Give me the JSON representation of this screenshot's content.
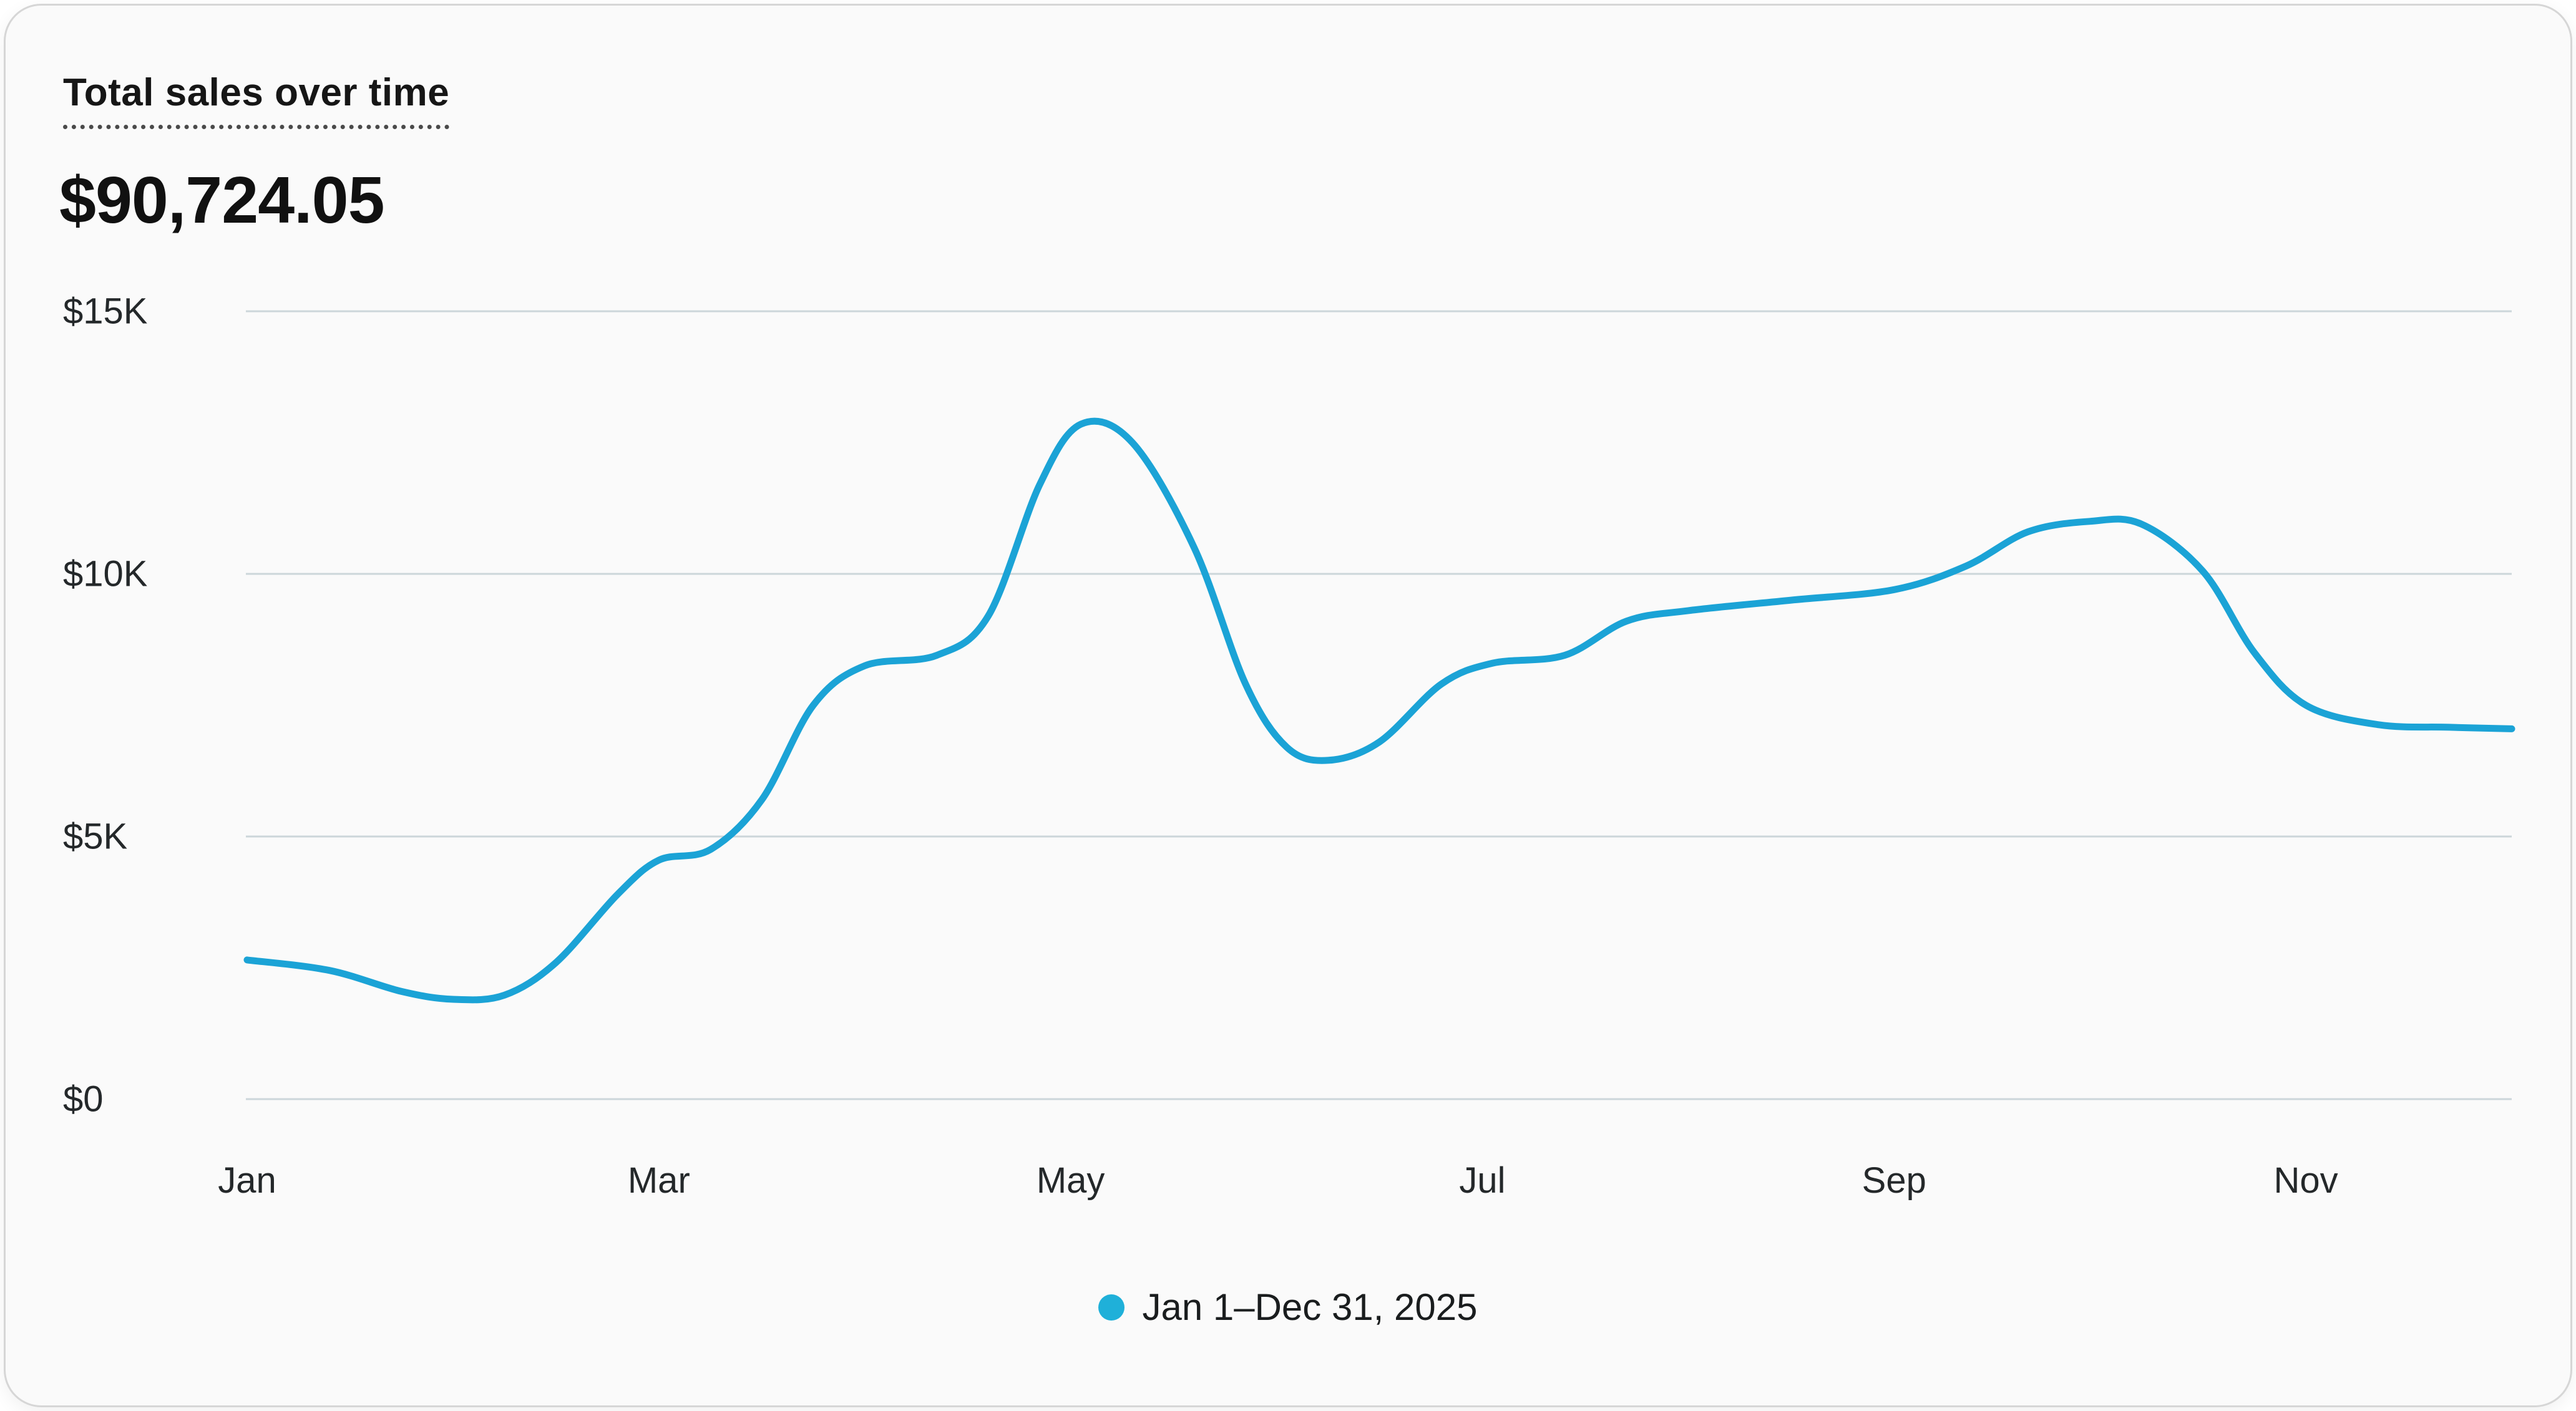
{
  "header": {
    "title": "Total sales over time",
    "total": "$90,724.05"
  },
  "legend": {
    "label": "Jan 1–Dec 31, 2025",
    "dot_color": "#1fb0d9"
  },
  "colors": {
    "line": "#1ba3d6",
    "gridline": "#ccd6da",
    "card_background": "#fafafa",
    "text_primary": "#111111",
    "axis_text": "#24282a"
  },
  "chart_data": {
    "type": "line",
    "title": "Total sales over time",
    "total_label": "$90,724.05",
    "legend_entry": "Jan 1–Dec 31, 2025",
    "ylabel": "",
    "xlabel": "",
    "ylim": [
      0,
      15000
    ],
    "x_months_range": [
      0,
      11
    ],
    "grid": "horizontal",
    "legend_position": "bottom-center",
    "yticks": [
      {
        "label": "$15K",
        "value": 15000
      },
      {
        "label": "$10K",
        "value": 10000
      },
      {
        "label": "$5K",
        "value": 5000
      },
      {
        "label": "$0",
        "value": 0
      }
    ],
    "xticks": [
      {
        "label": "Jan",
        "month": 0
      },
      {
        "label": "Mar",
        "month": 2
      },
      {
        "label": "May",
        "month": 4
      },
      {
        "label": "Jul",
        "month": 6
      },
      {
        "label": "Sep",
        "month": 8
      },
      {
        "label": "Nov",
        "month": 10
      }
    ],
    "series": [
      {
        "name": "Jan 1–Dec 31, 2025",
        "color": "#1ba3d6",
        "points_month_value": [
          [
            0.0,
            2650
          ],
          [
            0.4,
            2450
          ],
          [
            0.75,
            2050
          ],
          [
            1.0,
            1900
          ],
          [
            1.25,
            1980
          ],
          [
            1.5,
            2600
          ],
          [
            1.8,
            3900
          ],
          [
            2.0,
            4550
          ],
          [
            2.25,
            4750
          ],
          [
            2.5,
            5700
          ],
          [
            2.75,
            7500
          ],
          [
            3.0,
            8250
          ],
          [
            3.35,
            8450
          ],
          [
            3.6,
            9200
          ],
          [
            3.85,
            11700
          ],
          [
            4.05,
            12850
          ],
          [
            4.3,
            12500
          ],
          [
            4.6,
            10500
          ],
          [
            4.85,
            7900
          ],
          [
            5.05,
            6700
          ],
          [
            5.25,
            6450
          ],
          [
            5.5,
            6800
          ],
          [
            5.8,
            7900
          ],
          [
            6.05,
            8300
          ],
          [
            6.4,
            8450
          ],
          [
            6.7,
            9100
          ],
          [
            7.0,
            9300
          ],
          [
            7.5,
            9500
          ],
          [
            8.0,
            9700
          ],
          [
            8.35,
            10150
          ],
          [
            8.65,
            10800
          ],
          [
            8.95,
            11000
          ],
          [
            9.2,
            10950
          ],
          [
            9.5,
            10050
          ],
          [
            9.75,
            8500
          ],
          [
            10.0,
            7500
          ],
          [
            10.35,
            7130
          ],
          [
            10.7,
            7080
          ],
          [
            11.0,
            7050
          ]
        ]
      }
    ]
  }
}
